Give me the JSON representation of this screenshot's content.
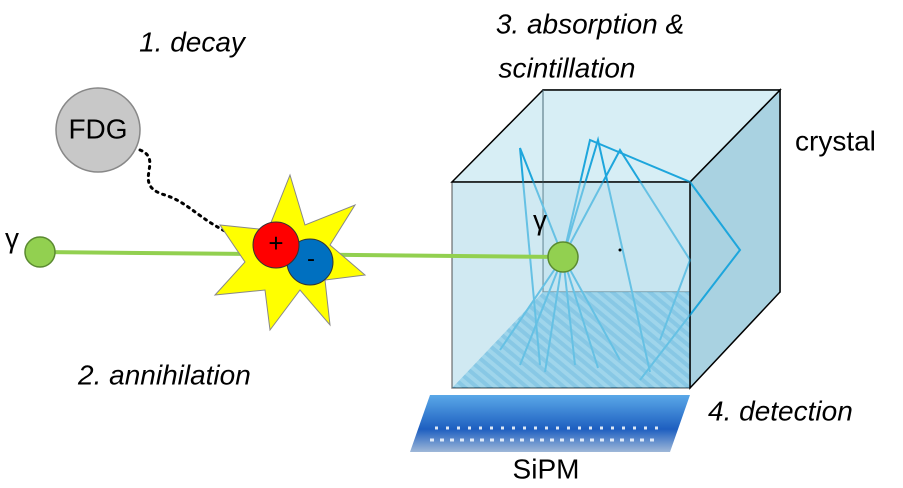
{
  "steps": {
    "decay": "1. decay",
    "absorption_line1": "3. absorption &",
    "absorption_line2": "scintillation",
    "annihilation": "2. annihilation",
    "detection": "4. detection"
  },
  "labels": {
    "fdg": "FDG",
    "crystal": "crystal",
    "gamma_left": "γ",
    "gamma_crystal": "γ",
    "positron": "+",
    "electron": "-",
    "sipm": "SiPM"
  }
}
